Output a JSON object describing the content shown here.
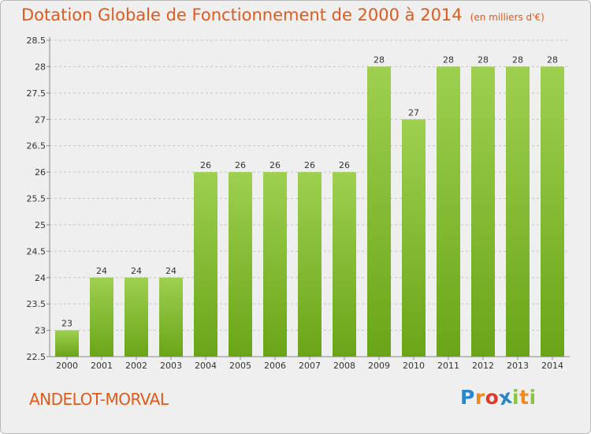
{
  "chart_data": {
    "type": "bar",
    "title": "Dotation Globale de Fonctionnement de 2000 à 2014",
    "subtitle": "(en milliers d'€)",
    "categories": [
      "2000",
      "2001",
      "2002",
      "2003",
      "2004",
      "2005",
      "2006",
      "2007",
      "2008",
      "2009",
      "2010",
      "2011",
      "2012",
      "2013",
      "2014"
    ],
    "values": [
      23,
      24,
      24,
      24,
      26,
      26,
      26,
      26,
      26,
      28,
      27,
      28,
      28,
      28,
      28
    ],
    "ylim": [
      22.5,
      28.5
    ],
    "yticks": [
      22.5,
      23,
      23.5,
      24,
      24.5,
      25,
      25.5,
      26,
      26.5,
      27,
      27.5,
      28,
      28.5
    ],
    "grid": "horizontal dashed",
    "bar_color": "#8cc63f"
  },
  "location": "ANDELOT-MORVAL",
  "brand": {
    "logo_text": "Proxiti",
    "letters": [
      "P",
      "r",
      "o",
      "x",
      "i",
      "t",
      "i"
    ],
    "letter_colors": [
      "#2a86c8",
      "#f08a1c",
      "#e23a2a",
      "#2a86c8",
      "#8cc63f",
      "#f08a1c",
      "#8cc63f"
    ]
  }
}
